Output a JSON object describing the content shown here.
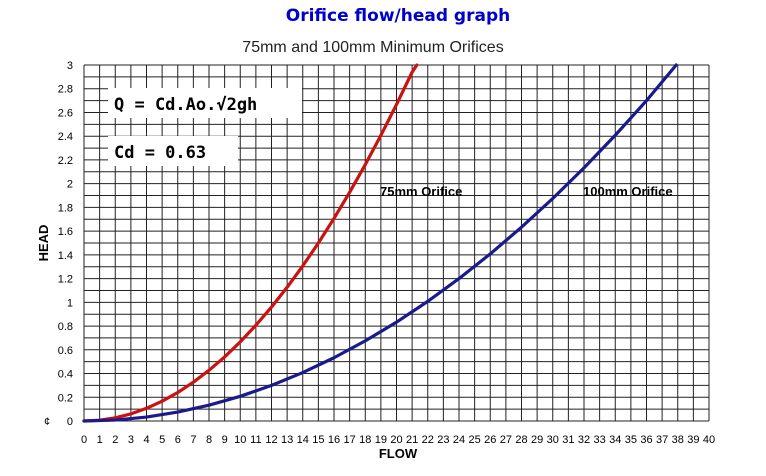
{
  "header": {
    "title": "Orifice flow/head graph",
    "subtitle": "75mm and 100mm Minimum Orifices"
  },
  "annotations": {
    "formula": "Q = Cd.Ao.√2gh",
    "cd": "Cd = 0.63",
    "origin_mark": "¢"
  },
  "chart_data": {
    "type": "line",
    "title": "Orifice flow/head graph",
    "subtitle": "75mm and 100mm Minimum Orifices",
    "xlabel": "FLOW",
    "ylabel": "HEAD",
    "xlim": [
      0,
      40
    ],
    "ylim": [
      0,
      3
    ],
    "x_ticks": [
      "0",
      "1",
      "2",
      "3",
      "4",
      "5",
      "6",
      "7",
      "8",
      "9",
      "10",
      "11",
      "12",
      "13",
      "14",
      "15",
      "16",
      "17",
      "18",
      "19",
      "20",
      "21",
      "22",
      "23",
      "24",
      "25",
      "26",
      "27",
      "28",
      "29",
      "30",
      "31",
      "32",
      "33",
      "34",
      "35",
      "36",
      "37",
      "38",
      "39",
      "40"
    ],
    "y_ticks": [
      "0",
      "0.2",
      "0.4",
      "0.6",
      "0.8",
      "1",
      "1.2",
      "1.4",
      "1.6",
      "1.8",
      "2",
      "2.2",
      "2.4",
      "2.6",
      "2.8",
      "3"
    ],
    "grid": true,
    "series": [
      {
        "name": "75mm Orifice",
        "color": "#cc1111",
        "x": [
          0,
          1,
          2,
          3,
          4,
          5,
          6,
          7,
          8,
          9,
          10,
          11,
          12,
          13,
          14,
          15,
          16,
          17,
          18,
          19,
          20,
          21,
          21.3
        ],
        "y": [
          0,
          0.007,
          0.027,
          0.06,
          0.107,
          0.167,
          0.24,
          0.327,
          0.427,
          0.54,
          0.667,
          0.807,
          0.96,
          1.127,
          1.307,
          1.5,
          1.707,
          1.927,
          2.16,
          2.407,
          2.667,
          2.94,
          3.0
        ]
      },
      {
        "name": "100mm Orifice",
        "color": "#1a1a8c",
        "x": [
          0,
          2,
          4,
          6,
          8,
          10,
          12,
          14,
          16,
          18,
          20,
          22,
          24,
          26,
          28,
          30,
          32,
          34,
          36,
          37.9
        ],
        "y": [
          0,
          0.008,
          0.033,
          0.075,
          0.133,
          0.208,
          0.3,
          0.408,
          0.533,
          0.675,
          0.833,
          1.008,
          1.2,
          1.408,
          1.633,
          1.875,
          2.133,
          2.408,
          2.7,
          3.0
        ]
      }
    ],
    "legend": "inline labels"
  }
}
